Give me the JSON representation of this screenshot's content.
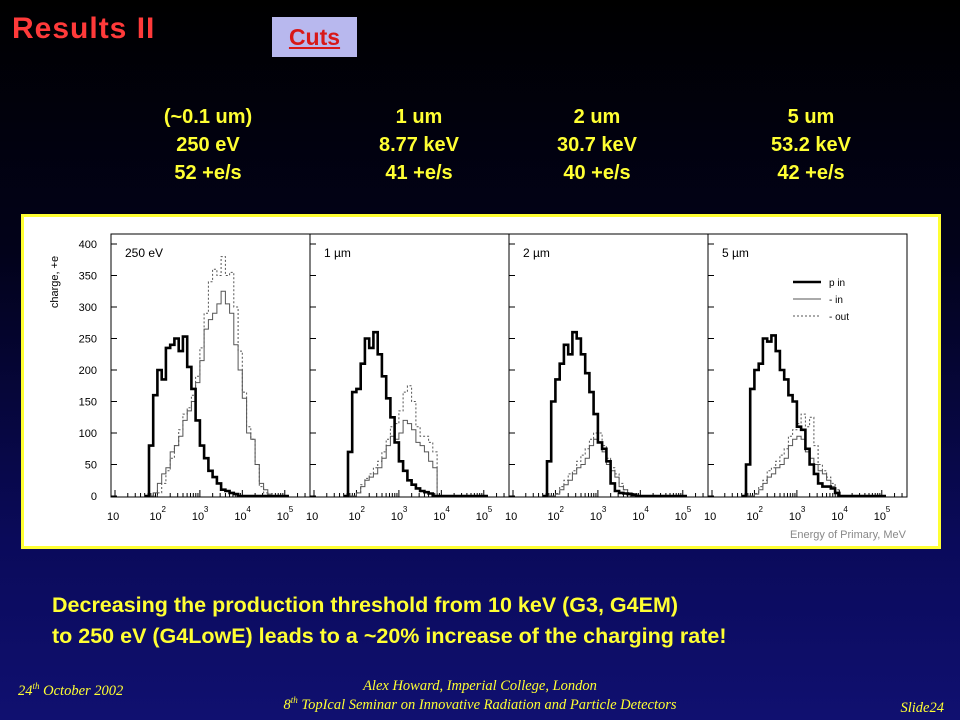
{
  "slide": {
    "title": "Results II",
    "cuts_link": "Cuts"
  },
  "columns": [
    {
      "size": "(~0.1 um)",
      "energy": "250 eV",
      "rate": "52 +e/s"
    },
    {
      "size": "1 um",
      "energy": "8.77 keV",
      "rate": "41 +e/s"
    },
    {
      "size": "2 um",
      "energy": "30.7 keV",
      "rate": "40 +e/s"
    },
    {
      "size": "5 um",
      "energy": "53.2 keV",
      "rate": "42 +e/s"
    }
  ],
  "conclusion": {
    "line1": "Decreasing the production threshold from 10 keV (G3, G4EM)",
    "line2": "to 250 eV (G4LowE) leads to a ~20% increase of the charging rate!"
  },
  "footer": {
    "date_day": "24",
    "date_suffix": "th",
    "date_rest": " October 2002",
    "author": "Alex Howard, Imperial College, London",
    "seminar_num": "8",
    "seminar_suffix": "th",
    "seminar_rest": " TopIcal Seminar on Innovative Radiation and Particle Detectors",
    "slide_no": "Slide24"
  },
  "colors": {
    "title": "#ff3a3a",
    "text": "#ffff33",
    "cuts_bg": "#b8b8ee",
    "cuts_text": "#d81818"
  },
  "chart_data": {
    "type": "histogram",
    "ylabel": "charge, +e",
    "xlabel": "Energy of Primary, MeV",
    "ylim": [
      0,
      400
    ],
    "yticks": [
      0,
      50,
      100,
      150,
      200,
      250,
      300,
      350,
      400
    ],
    "xscale": "log",
    "xlim_log10": [
      1,
      5.5
    ],
    "xticks_base": "10",
    "xticks_exp": [
      "",
      "2",
      "3",
      "4",
      "5"
    ],
    "bin_width_log10": 0.1,
    "bins_start_log10": 1.7,
    "legend": {
      "position": "top-right of panel 4",
      "entries": [
        {
          "label": "p in",
          "style": "thick"
        },
        {
          "label": "- in",
          "style": "thin"
        },
        {
          "label": "- out",
          "style": "dotted"
        }
      ]
    },
    "panels": [
      {
        "label": "250 eV",
        "series": [
          {
            "name": "p in",
            "values": [
              0,
              80,
              160,
              200,
              185,
              235,
              240,
              250,
              230,
              253,
              205,
              170,
              120,
              80,
              60,
              40,
              30,
              20,
              10,
              8,
              5,
              3,
              0,
              0,
              0,
              0,
              0,
              0,
              0,
              0,
              0,
              0,
              0,
              0
            ]
          },
          {
            "name": "- in",
            "values": [
              0,
              0,
              5,
              20,
              35,
              45,
              70,
              80,
              95,
              120,
              135,
              150,
              180,
              215,
              265,
              280,
              290,
              305,
              325,
              305,
              290,
              240,
              200,
              155,
              100,
              90,
              50,
              20,
              10,
              3,
              0,
              0,
              0,
              0
            ]
          },
          {
            "name": "- out",
            "values": [
              0,
              0,
              0,
              5,
              20,
              40,
              60,
              80,
              105,
              130,
              140,
              160,
              190,
              235,
              290,
              340,
              360,
              350,
              380,
              350,
              355,
              300,
              230,
              165,
              110,
              90,
              50,
              15,
              5,
              0,
              0,
              0,
              0,
              0
            ]
          }
        ]
      },
      {
        "label": "1 µm",
        "series": [
          {
            "name": "p in",
            "values": [
              0,
              70,
              165,
              170,
              210,
              250,
              235,
              260,
              225,
              190,
              155,
              125,
              85,
              55,
              40,
              25,
              18,
              12,
              8,
              6,
              4,
              0,
              0,
              0,
              0,
              0,
              0,
              0,
              0,
              0,
              0,
              0,
              0,
              0
            ]
          },
          {
            "name": "- in",
            "values": [
              0,
              0,
              0,
              5,
              15,
              25,
              30,
              35,
              45,
              60,
              80,
              95,
              90,
              100,
              120,
              115,
              105,
              85,
              80,
              70,
              55,
              45,
              0,
              0,
              0,
              0,
              0,
              0,
              0,
              0,
              0,
              0,
              0,
              0
            ]
          },
          {
            "name": "- out",
            "values": [
              0,
              0,
              0,
              5,
              18,
              28,
              35,
              45,
              55,
              70,
              90,
              110,
              115,
              135,
              165,
              175,
              150,
              110,
              95,
              95,
              85,
              70,
              0,
              0,
              0,
              0,
              0,
              0,
              0,
              0,
              0,
              0,
              0,
              0
            ]
          }
        ]
      },
      {
        "label": "2 µm",
        "series": [
          {
            "name": "p in",
            "values": [
              0,
              55,
              150,
              185,
              210,
              240,
              225,
              260,
              250,
              225,
              195,
              165,
              130,
              85,
              75,
              55,
              20,
              8,
              5,
              4,
              3,
              2,
              0,
              0,
              0,
              0,
              0,
              0,
              0,
              0,
              0,
              0,
              0,
              0
            ]
          },
          {
            "name": "- in",
            "values": [
              0,
              0,
              0,
              3,
              10,
              18,
              25,
              35,
              45,
              50,
              60,
              80,
              90,
              85,
              70,
              50,
              40,
              30,
              15,
              10,
              5,
              0,
              0,
              0,
              0,
              0,
              0,
              0,
              0,
              0,
              0,
              0,
              0,
              0
            ]
          },
          {
            "name": "- out",
            "values": [
              0,
              0,
              0,
              4,
              15,
              25,
              35,
              40,
              55,
              65,
              75,
              90,
              100,
              100,
              80,
              60,
              45,
              35,
              20,
              10,
              5,
              0,
              0,
              0,
              0,
              0,
              0,
              0,
              0,
              0,
              0,
              0,
              0,
              0
            ]
          }
        ]
      },
      {
        "label": "5 µm",
        "series": [
          {
            "name": "p in",
            "values": [
              0,
              50,
              170,
              200,
              210,
              250,
              245,
              255,
              230,
              200,
              185,
              160,
              150,
              110,
              105,
              75,
              50,
              35,
              20,
              15,
              15,
              12,
              5,
              0,
              0,
              0,
              0,
              0,
              0,
              0,
              0,
              0,
              0,
              0
            ]
          },
          {
            "name": "- in",
            "values": [
              0,
              0,
              0,
              3,
              10,
              20,
              30,
              35,
              45,
              50,
              60,
              80,
              90,
              95,
              90,
              70,
              60,
              50,
              40,
              35,
              25,
              15,
              5,
              0,
              0,
              0,
              0,
              0,
              0,
              0,
              0,
              0,
              0,
              0
            ]
          },
          {
            "name": "- out",
            "values": [
              0,
              0,
              0,
              4,
              15,
              25,
              40,
              45,
              55,
              65,
              75,
              95,
              105,
              115,
              130,
              110,
              125,
              80,
              50,
              40,
              30,
              20,
              10,
              0,
              0,
              0,
              0,
              0,
              0,
              0,
              0,
              0,
              0,
              0
            ]
          }
        ]
      }
    ]
  }
}
